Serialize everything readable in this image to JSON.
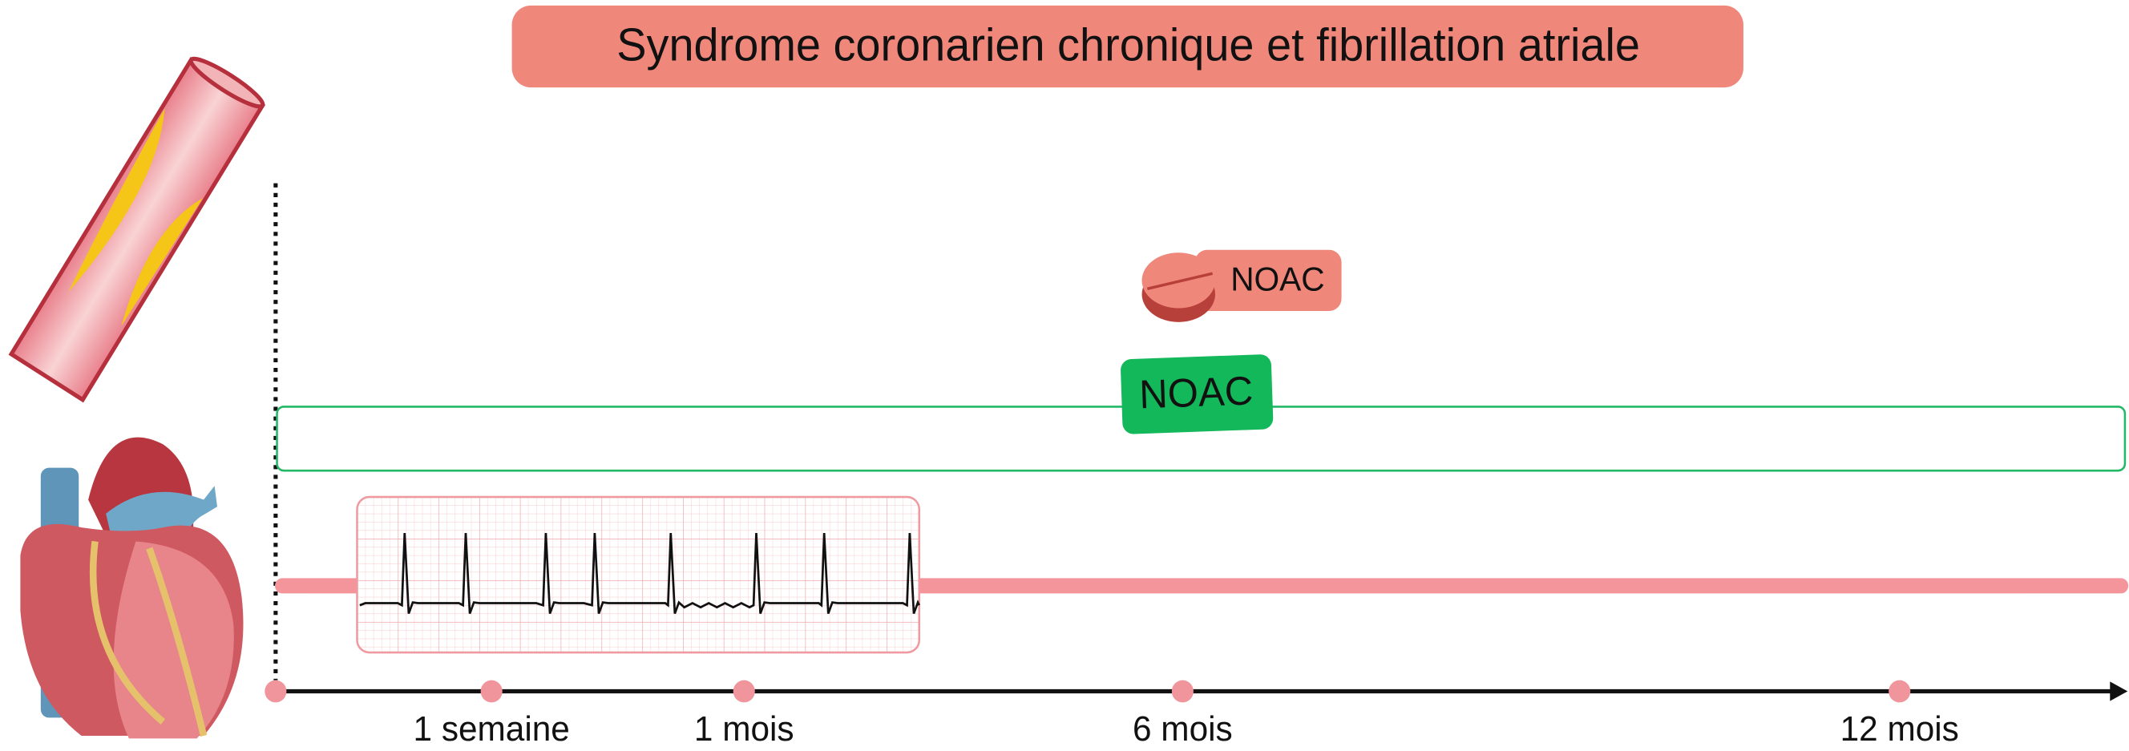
{
  "header": {
    "title": "Syndrome coronarien chronique et fibrillation atriale"
  },
  "pill": {
    "label": "NOAC"
  },
  "treatment_bar": {
    "label": "NOAC"
  },
  "timeline": {
    "labels": [
      "1 semaine",
      "1 mois",
      "6 mois",
      "12 mois"
    ]
  }
}
